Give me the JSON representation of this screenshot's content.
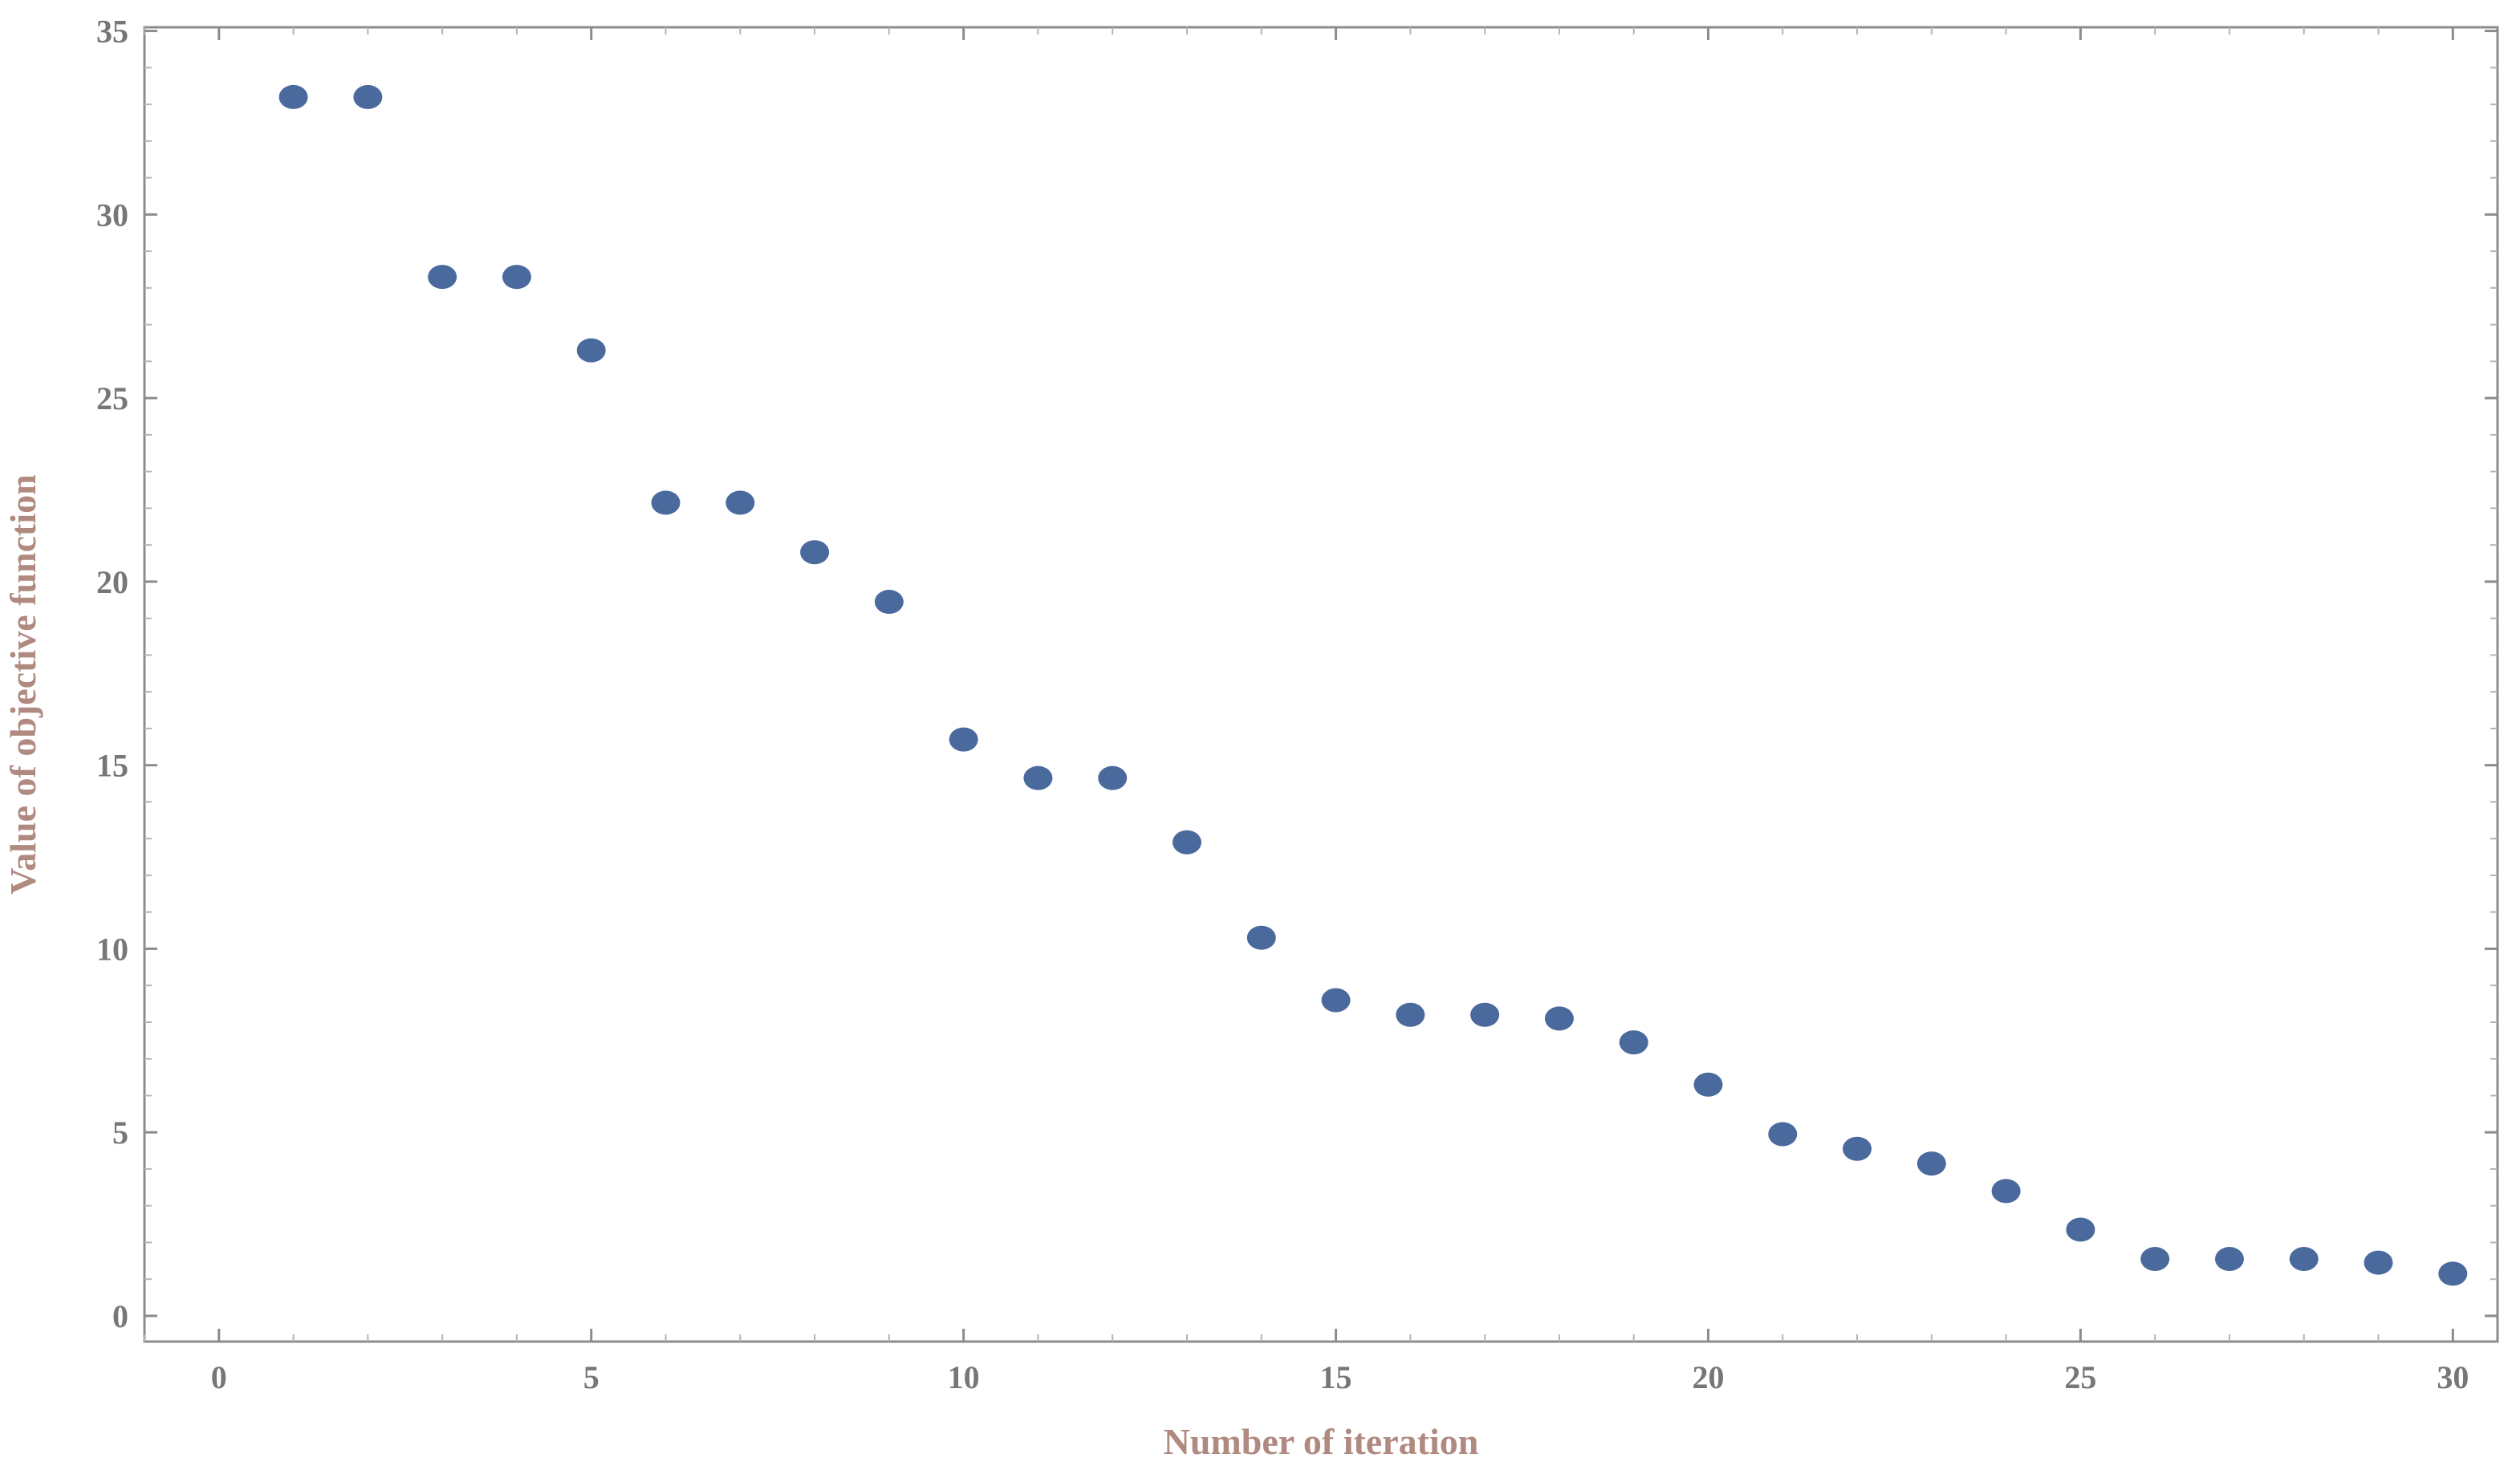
{
  "chart_data": {
    "type": "scatter",
    "title": "",
    "xlabel": "Number of iteration",
    "ylabel": "Value of objective function",
    "xlim": [
      -1,
      30.6
    ],
    "ylim": [
      -0.7,
      35.1
    ],
    "xticks": [
      0,
      5,
      10,
      15,
      20,
      25,
      30
    ],
    "yticks": [
      0,
      5,
      10,
      15,
      20,
      25,
      30,
      35
    ],
    "xtick_labels": [
      "0",
      "5",
      "10",
      "15",
      "20",
      "25",
      "30"
    ],
    "ytick_labels": [
      "0",
      "5",
      "10",
      "15",
      "20",
      "25",
      "30",
      "35"
    ],
    "grid": false,
    "marker_color": "#4a6a9e",
    "series": [
      {
        "x": [
          1,
          2,
          3,
          4,
          5,
          6,
          7,
          8,
          9,
          10,
          11,
          12,
          13,
          14,
          15,
          16,
          17,
          18,
          19,
          20,
          21,
          22,
          23,
          24,
          25,
          26,
          27,
          28,
          29,
          30
        ],
        "y": [
          33.2,
          33.2,
          28.3,
          28.3,
          26.3,
          22.15,
          22.15,
          20.8,
          19.45,
          15.7,
          14.65,
          14.65,
          12.9,
          10.3,
          8.6,
          8.2,
          8.2,
          8.1,
          7.45,
          6.3,
          4.95,
          4.55,
          4.15,
          3.4,
          2.35,
          1.55,
          1.55,
          1.55,
          1.45,
          1.15
        ]
      }
    ]
  }
}
